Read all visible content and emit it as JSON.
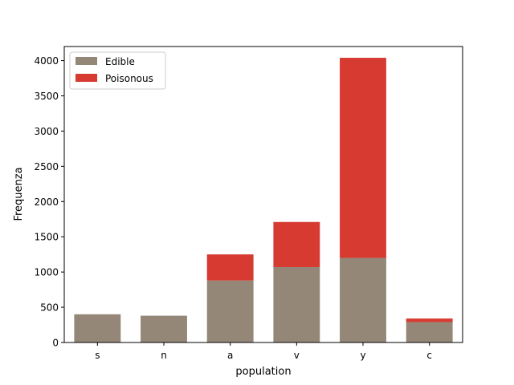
{
  "chart_data": {
    "type": "bar",
    "stacked": true,
    "title": "",
    "xlabel": "population",
    "ylabel": "Frequenza",
    "categories": [
      "s",
      "n",
      "a",
      "v",
      "y",
      "c"
    ],
    "series": [
      {
        "name": "Edible",
        "color": "#948778",
        "values": [
          400,
          380,
          880,
          1070,
          1200,
          290
        ]
      },
      {
        "name": "Poisonous",
        "color": "#d73a30",
        "values": [
          0,
          0,
          370,
          640,
          2840,
          50
        ]
      }
    ],
    "ylim": [
      0,
      4200
    ],
    "yticks": [
      0,
      500,
      1000,
      1500,
      2000,
      2500,
      3000,
      3500,
      4000
    ],
    "grid": false,
    "legend_position": "upper-left"
  }
}
